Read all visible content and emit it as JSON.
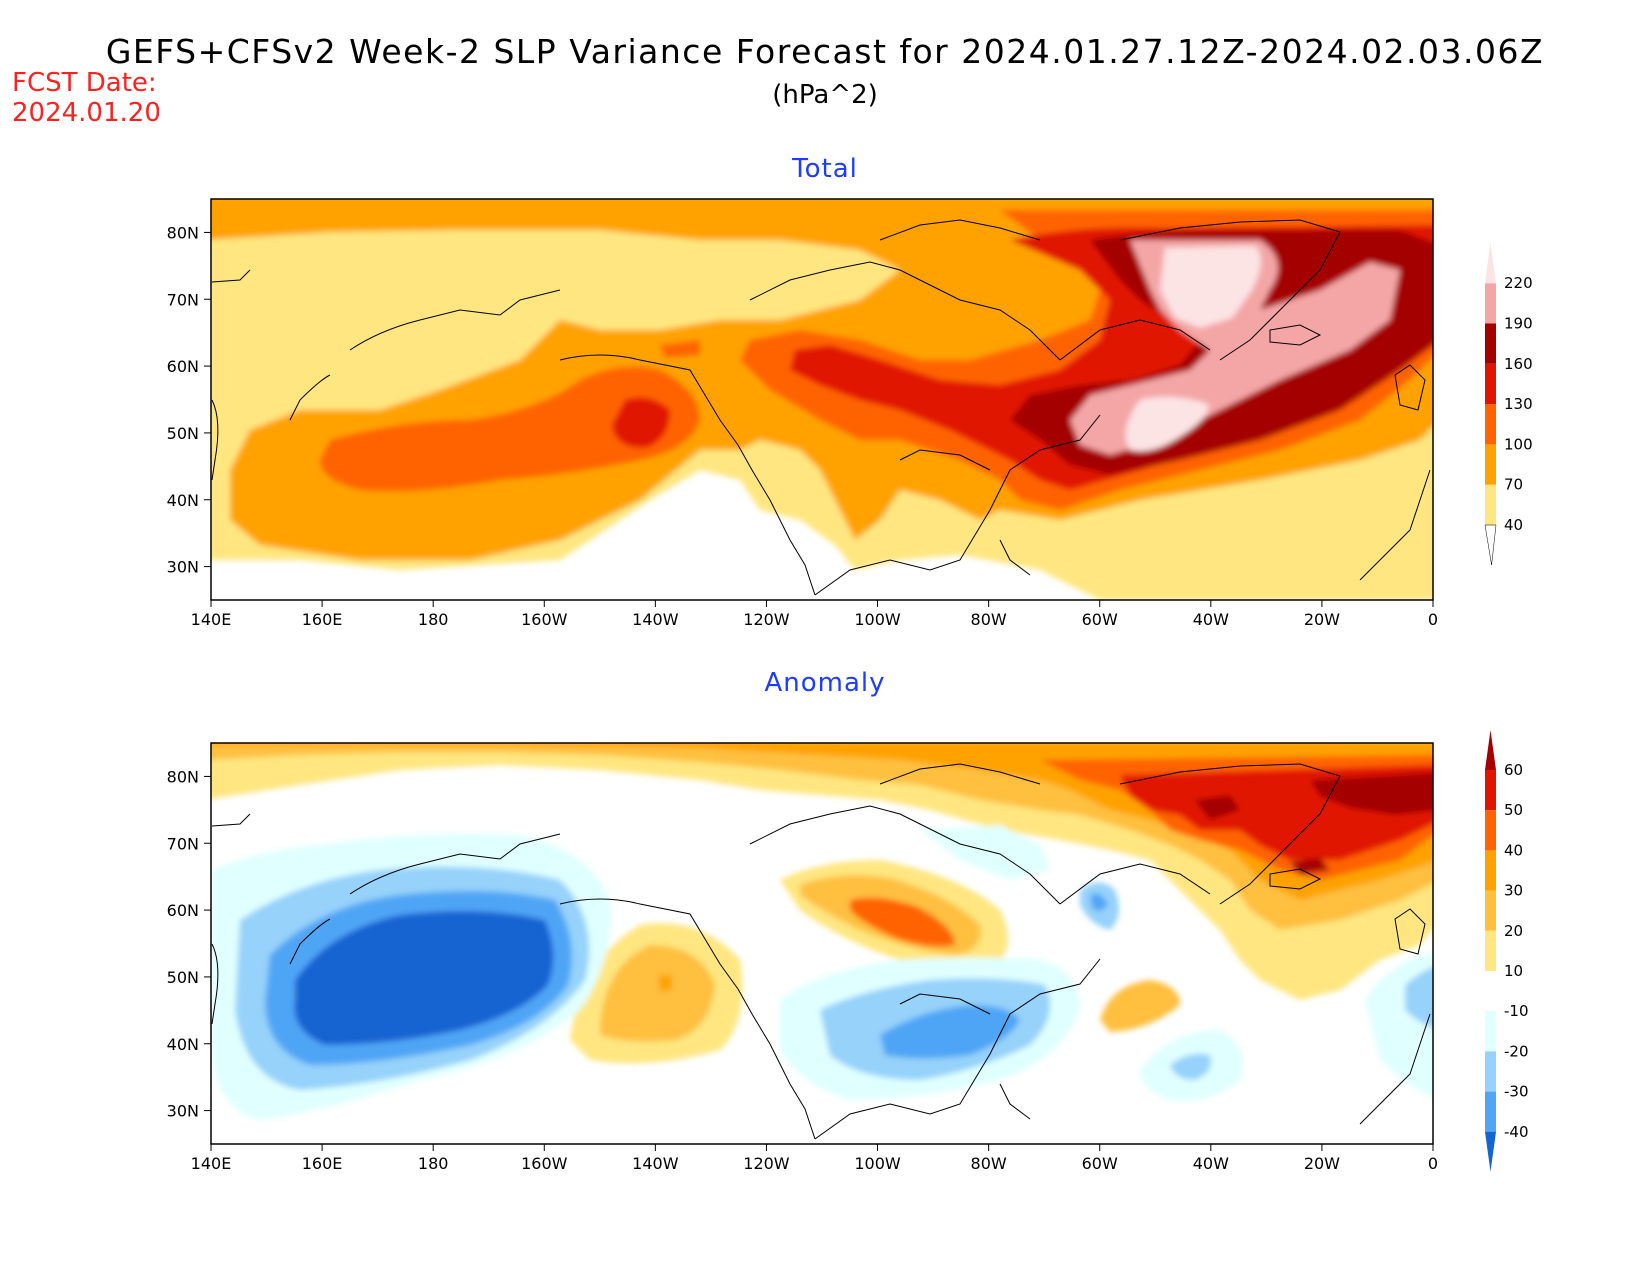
{
  "header": {
    "title": "GEFS+CFSv2 Week-2 SLP Variance Forecast for 2024.01.27.12Z-2024.02.03.06Z",
    "units": "(hPa^2)",
    "fcst_label": "FCST Date:",
    "fcst_date": "2024.01.20"
  },
  "panels": {
    "total": {
      "title": "Total",
      "colorbar": {
        "levels": [
          "40",
          "70",
          "100",
          "130",
          "160",
          "190",
          "220"
        ],
        "colors": [
          "#ffe680",
          "#ffa200",
          "#ff6400",
          "#e11400",
          "#a50000",
          "#f4a6a6",
          "#fce4e4"
        ]
      }
    },
    "anomaly": {
      "title": "Anomaly",
      "colorbar": {
        "levels": [
          "60",
          "50",
          "40",
          "30",
          "20",
          "10",
          "-10",
          "-20",
          "-30",
          "-40"
        ],
        "colors": [
          "#a50000",
          "#e11400",
          "#ff6400",
          "#ffa200",
          "#ffc040",
          "#ffe680",
          "#ffffff",
          "#e0ffff",
          "#96d2fa",
          "#50a5f5",
          "#1464d2"
        ]
      }
    },
    "axes": {
      "lon_labels": [
        "140E",
        "160E",
        "180",
        "160W",
        "140W",
        "120W",
        "100W",
        "80W",
        "60W",
        "40W",
        "20W",
        "0"
      ],
      "lat_labels": [
        "30N",
        "40N",
        "50N",
        "60N",
        "70N",
        "80N"
      ]
    }
  }
}
